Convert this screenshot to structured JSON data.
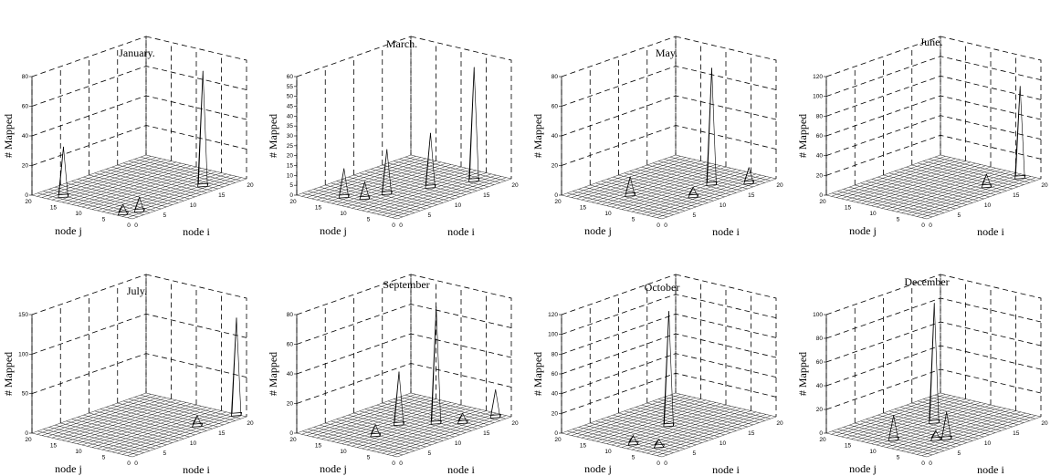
{
  "chart_data": [
    {
      "type": "surface",
      "title": "January.",
      "xlabel": "node i",
      "ylabel": "node j",
      "zlabel": "# Mapped",
      "zlim": [
        0,
        80
      ],
      "zticks": [
        "0",
        "20",
        "40",
        "60",
        "80"
      ],
      "xticks": [
        "0",
        "5",
        "10",
        "15",
        "20"
      ],
      "yticks": [
        "0",
        "5",
        "10",
        "15",
        "20"
      ],
      "peaks": [
        {
          "i": 15,
          "j": 3,
          "z": 77
        },
        {
          "i": 2,
          "j": 16,
          "z": 33
        },
        {
          "i": 3,
          "j": 2,
          "z": 9
        },
        {
          "i": 1,
          "j": 3,
          "z": 6
        }
      ]
    },
    {
      "type": "surface",
      "title": "March.",
      "xlabel": "node i",
      "ylabel": "node j",
      "zlabel": "# Mapped",
      "zlim": [
        0,
        60
      ],
      "zticks": [
        "0",
        "5",
        "10",
        "15",
        "20",
        "25",
        "30",
        "35",
        "40",
        "45",
        "50",
        "55",
        "60"
      ],
      "xticks": [
        "0",
        "5",
        "10",
        "15",
        "20"
      ],
      "yticks": [
        "0",
        "5",
        "10",
        "15",
        "20"
      ],
      "peaks": [
        {
          "i": 17,
          "j": 4,
          "z": 57
        },
        {
          "i": 12,
          "j": 7,
          "z": 27
        },
        {
          "i": 7,
          "j": 10,
          "z": 22
        },
        {
          "i": 3,
          "j": 14,
          "z": 14
        },
        {
          "i": 4,
          "j": 11,
          "z": 8
        }
      ]
    },
    {
      "type": "surface",
      "title": "May.",
      "xlabel": "node i",
      "ylabel": "node j",
      "zlabel": "# Mapped",
      "zlim": [
        0,
        80
      ],
      "zticks": [
        "0",
        "20",
        "40",
        "60",
        "80"
      ],
      "xticks": [
        "0",
        "5",
        "10",
        "15",
        "20"
      ],
      "yticks": [
        "0",
        "5",
        "10",
        "15",
        "20"
      ],
      "peaks": [
        {
          "i": 14,
          "j": 6,
          "z": 78
        },
        {
          "i": 5,
          "j": 12,
          "z": 12
        },
        {
          "i": 17,
          "j": 2,
          "z": 10
        },
        {
          "i": 9,
          "j": 4,
          "z": 6
        }
      ]
    },
    {
      "type": "surface",
      "title": "June.",
      "xlabel": "node i",
      "ylabel": "node j",
      "zlabel": "# Mapped",
      "zlim": [
        0,
        120
      ],
      "zticks": [
        "0",
        "20",
        "40",
        "60",
        "80",
        "100",
        "120"
      ],
      "xticks": [
        "0",
        "5",
        "10",
        "15",
        "20"
      ],
      "yticks": [
        "0",
        "5",
        "10",
        "15",
        "20"
      ],
      "peaks": [
        {
          "i": 19,
          "j": 3,
          "z": 92
        },
        {
          "i": 14,
          "j": 4,
          "z": 12
        }
      ]
    },
    {
      "type": "surface",
      "title": "July.",
      "xlabel": "node i",
      "ylabel": "node j",
      "zlabel": "# Mapped",
      "zlim": [
        0,
        150
      ],
      "zticks": [
        "0",
        "50",
        "100",
        "150"
      ],
      "xticks": [
        "0",
        "5",
        "10",
        "15",
        "20"
      ],
      "yticks": [
        "0",
        "5",
        "10",
        "15",
        "20"
      ],
      "peaks": [
        {
          "i": 20,
          "j": 2,
          "z": 122
        },
        {
          "i": 14,
          "j": 3,
          "z": 12
        }
      ]
    },
    {
      "type": "surface",
      "title": "September",
      "xlabel": "node i",
      "ylabel": "node j",
      "zlabel": "# Mapped",
      "zlim": [
        0,
        80
      ],
      "zticks": [
        "0",
        "20",
        "40",
        "60",
        "80"
      ],
      "xticks": [
        "0",
        "5",
        "10",
        "15",
        "20"
      ],
      "yticks": [
        "0",
        "5",
        "10",
        "15",
        "20"
      ],
      "peaks": [
        {
          "i": 13,
          "j": 7,
          "z": 78
        },
        {
          "i": 10,
          "j": 11,
          "z": 35
        },
        {
          "i": 19,
          "j": 2,
          "z": 18
        },
        {
          "i": 5,
          "j": 10,
          "z": 7
        },
        {
          "i": 15,
          "j": 4,
          "z": 6
        }
      ]
    },
    {
      "type": "surface",
      "title": "October",
      "xlabel": "node i",
      "ylabel": "node j",
      "zlabel": "# Mapped",
      "zlim": [
        0,
        120
      ],
      "zticks": [
        "0",
        "20",
        "40",
        "60",
        "80",
        "100",
        "120"
      ],
      "xticks": [
        "0",
        "5",
        "10",
        "15",
        "20"
      ],
      "yticks": [
        "0",
        "5",
        "10",
        "15",
        "20"
      ],
      "peaks": [
        {
          "i": 10,
          "j": 10,
          "z": 115
        },
        {
          "i": 2,
          "j": 8,
          "z": 8
        },
        {
          "i": 3,
          "j": 4,
          "z": 7
        }
      ]
    },
    {
      "type": "surface",
      "title": "December",
      "xlabel": "node i",
      "ylabel": "node j",
      "zlabel": "# Mapped",
      "zlim": [
        0,
        100
      ],
      "zticks": [
        "0",
        "20",
        "40",
        "60",
        "80",
        "100"
      ],
      "xticks": [
        "0",
        "5",
        "10",
        "15",
        "20"
      ],
      "yticks": [
        "0",
        "5",
        "10",
        "15",
        "20"
      ],
      "peaks": [
        {
          "i": 11,
          "j": 11,
          "z": 100
        },
        {
          "i": 3,
          "j": 10,
          "z": 20
        },
        {
          "i": 7,
          "j": 4,
          "z": 22
        },
        {
          "i": 6,
          "j": 5,
          "z": 7
        }
      ]
    }
  ]
}
